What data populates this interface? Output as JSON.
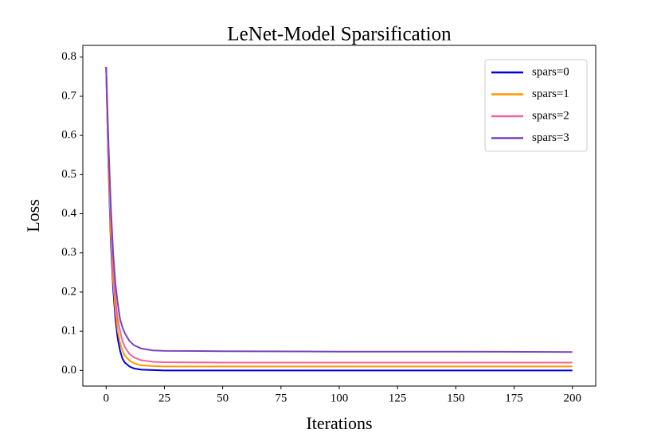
{
  "chart_data": {
    "type": "line",
    "title": "LeNet-Model Sparsification",
    "x_label": "Iterations",
    "y_label": "Loss",
    "x": [
      0,
      1,
      2,
      3,
      4,
      5,
      6,
      7,
      8,
      10,
      12,
      15,
      20,
      25,
      50,
      100,
      150,
      200
    ],
    "series": [
      {
        "name": "spars=0",
        "color": "#0000dd",
        "values": [
          0.775,
          0.52,
          0.33,
          0.21,
          0.13,
          0.08,
          0.05,
          0.03,
          0.02,
          0.01,
          0.005,
          0.002,
          0.001,
          0.0,
          0.0,
          0.0,
          0.0,
          0.0
        ]
      },
      {
        "name": "spars=1",
        "color": "#ff9900",
        "values": [
          0.775,
          0.53,
          0.35,
          0.23,
          0.15,
          0.1,
          0.07,
          0.05,
          0.038,
          0.025,
          0.018,
          0.013,
          0.011,
          0.01,
          0.01,
          0.01,
          0.01,
          0.01
        ]
      },
      {
        "name": "spars=2",
        "color": "#ee6699",
        "values": [
          0.775,
          0.55,
          0.38,
          0.26,
          0.18,
          0.13,
          0.1,
          0.075,
          0.06,
          0.042,
          0.033,
          0.026,
          0.022,
          0.021,
          0.02,
          0.02,
          0.02,
          0.02
        ]
      },
      {
        "name": "spars=3",
        "color": "#7744bb",
        "values": [
          0.775,
          0.58,
          0.42,
          0.3,
          0.22,
          0.17,
          0.13,
          0.11,
          0.095,
          0.075,
          0.064,
          0.056,
          0.051,
          0.05,
          0.049,
          0.048,
          0.048,
          0.047
        ]
      }
    ],
    "xlim": [
      -10,
      210
    ],
    "ylim": [
      -0.04,
      0.83
    ],
    "xticks": [
      0,
      25,
      50,
      75,
      100,
      125,
      150,
      175,
      200
    ],
    "yticks": [
      {
        "value": 0,
        "label": "0.0"
      },
      0.1,
      0.2,
      0.3,
      0.4,
      0.5,
      0.6,
      0.7,
      0.8
    ],
    "legend": "upper right",
    "grid": false
  }
}
